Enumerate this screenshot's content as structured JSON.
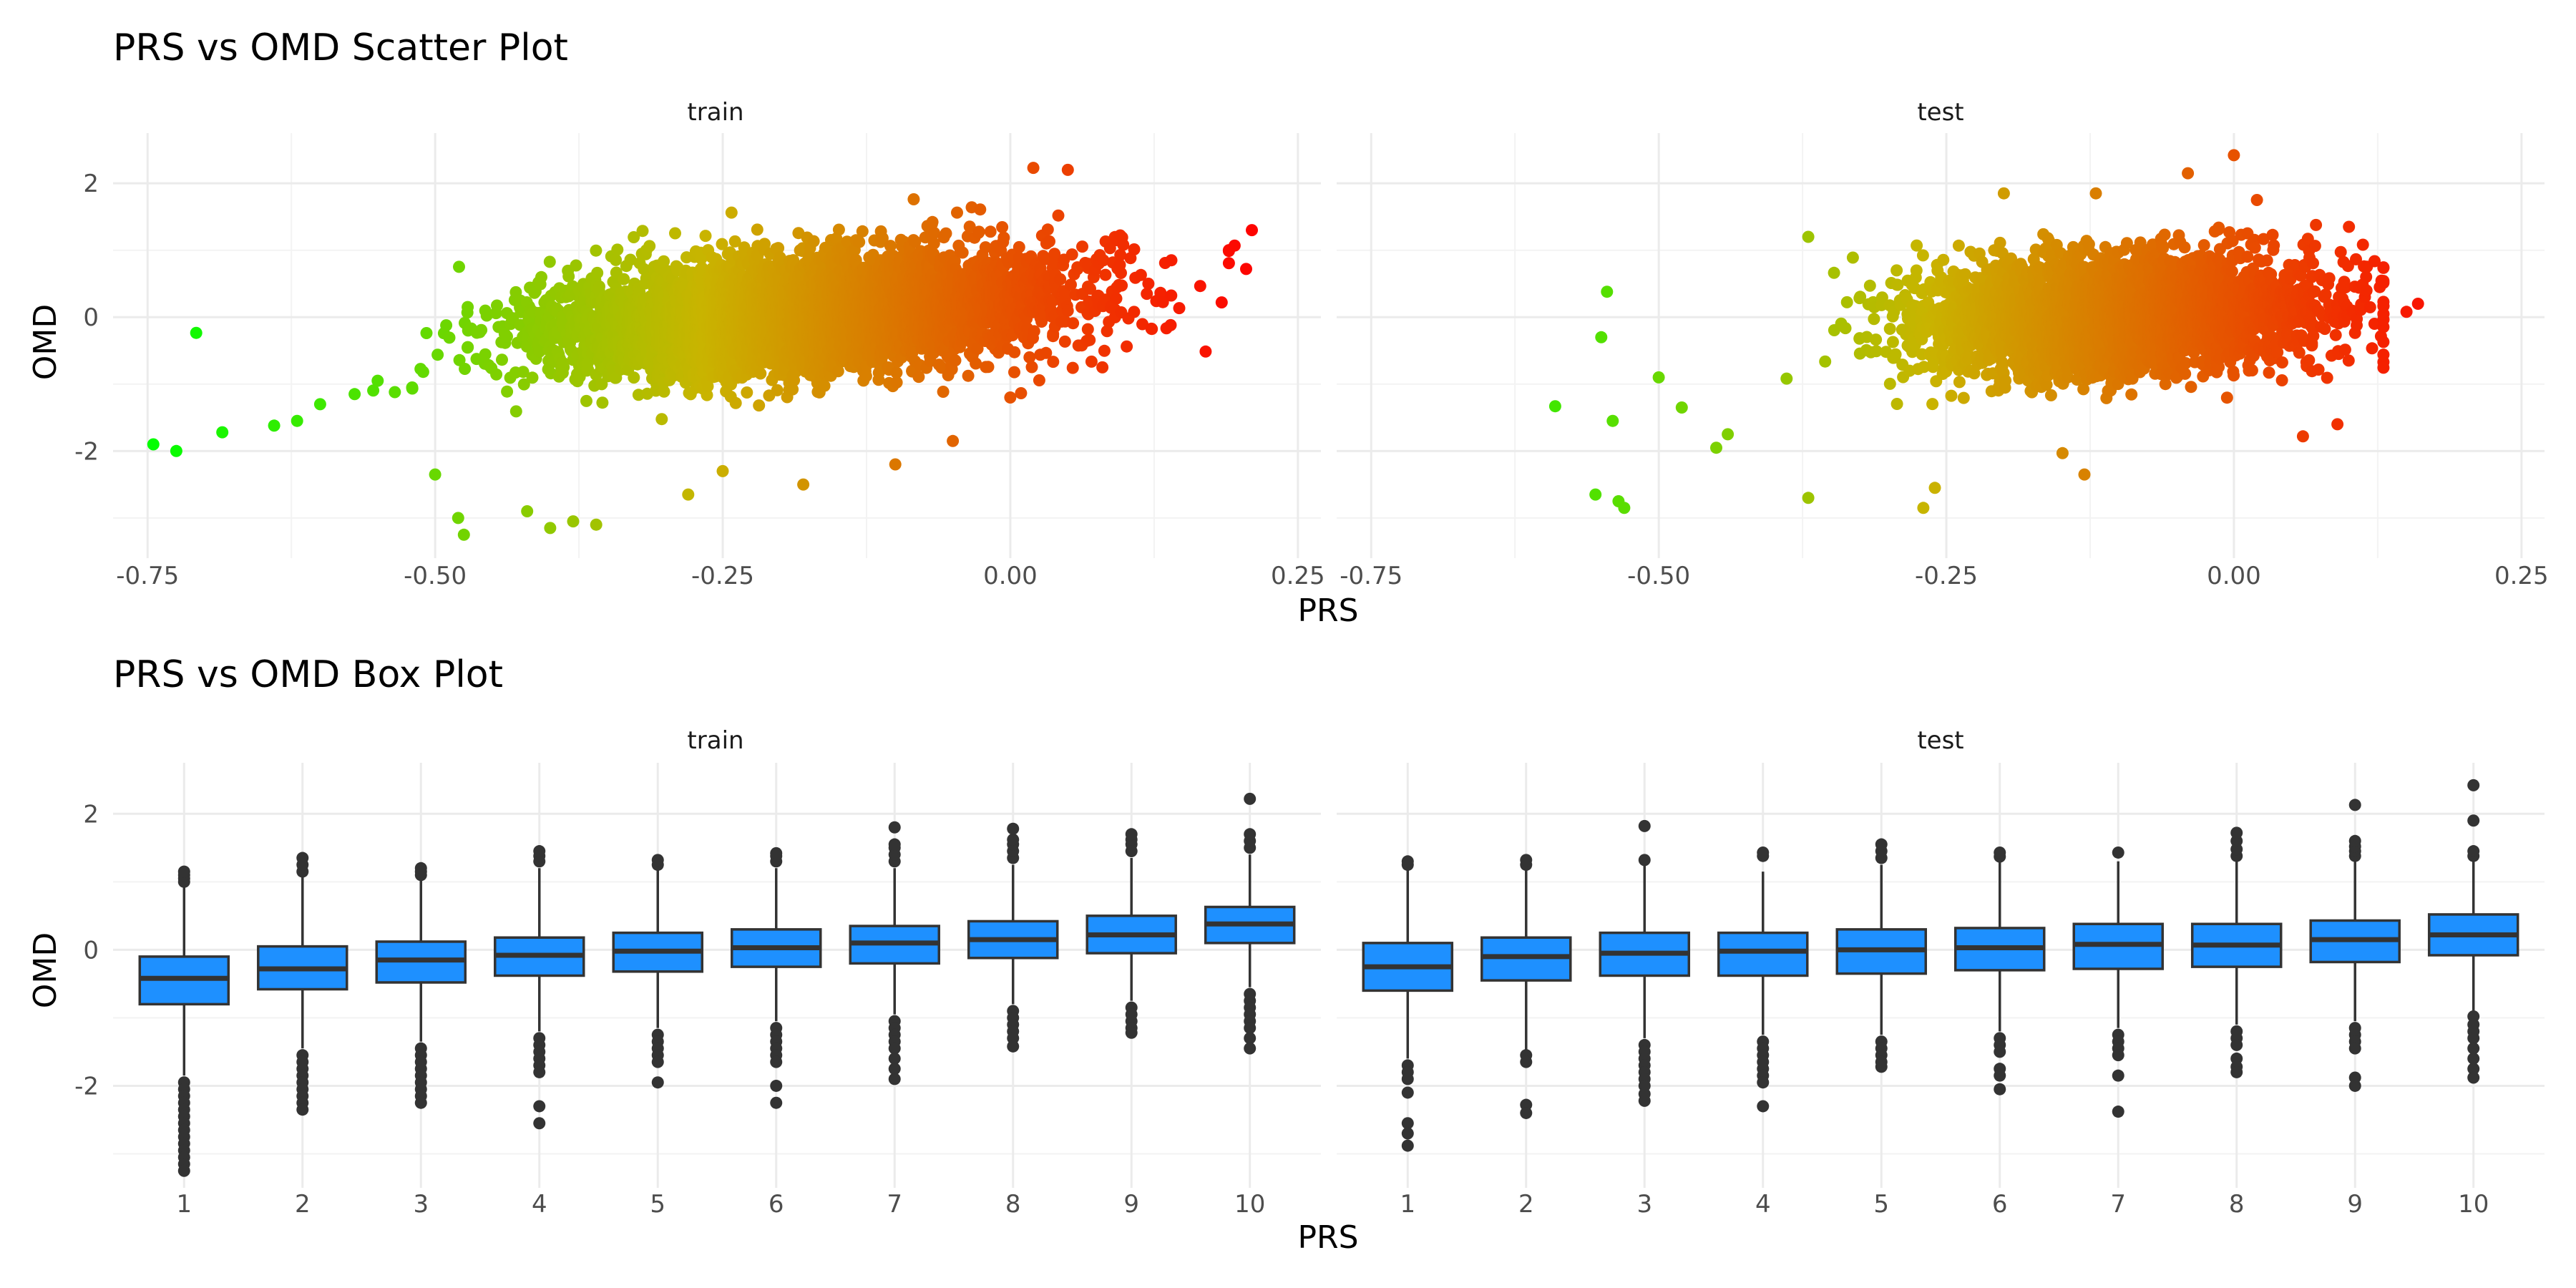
{
  "figure": {
    "xlabel": "PRS",
    "ylabel": "OMD"
  },
  "chart_data": [
    {
      "type": "scatter",
      "title": "PRS vs OMD Scatter Plot",
      "xlabel": "PRS",
      "ylabel": "OMD",
      "facets": [
        "train",
        "test"
      ],
      "xlim": [
        -0.78,
        0.27
      ],
      "ylim": [
        -3.6,
        2.75
      ],
      "x_ticks": [
        -0.75,
        -0.5,
        -0.25,
        0.0,
        0.25
      ],
      "x_tick_labels": [
        "-0.75",
        "-0.50",
        "-0.25",
        "0.00",
        "0.25"
      ],
      "y_ticks": [
        -2,
        0,
        2
      ],
      "y_tick_labels": [
        "-2",
        "0",
        "2"
      ],
      "color_scale": {
        "low": "#00ff00",
        "high": "#ff0000",
        "mapped_to": "PRS",
        "legend": "none"
      },
      "grid": true,
      "panels": {
        "train": {
          "x_range": [
            -0.75,
            0.22
          ],
          "center_x": -0.18,
          "trend_slope": 1.9,
          "trend_intercept": 0.25,
          "points": [
            {
              "x": -0.745,
              "y": -1.9
            },
            {
              "x": -0.725,
              "y": -2.0
            },
            {
              "x": -0.685,
              "y": -1.72
            },
            {
              "x": -0.64,
              "y": -1.62
            },
            {
              "x": -0.62,
              "y": -1.55
            },
            {
              "x": -0.6,
              "y": -1.3
            },
            {
              "x": -0.57,
              "y": -1.15
            },
            {
              "x": -0.55,
              "y": -0.95
            },
            {
              "x": -0.52,
              "y": -1.05
            },
            {
              "x": -0.5,
              "y": -2.35
            },
            {
              "x": -0.48,
              "y": -3.0
            },
            {
              "x": -0.475,
              "y": -3.25
            },
            {
              "x": -0.42,
              "y": -2.9
            },
            {
              "x": -0.4,
              "y": -3.15
            },
            {
              "x": -0.38,
              "y": -3.05
            },
            {
              "x": -0.36,
              "y": -3.1
            },
            {
              "x": -0.28,
              "y": -2.65
            },
            {
              "x": -0.25,
              "y": -2.3
            },
            {
              "x": -0.18,
              "y": -2.5
            },
            {
              "x": 0.02,
              "y": 2.23
            },
            {
              "x": 0.05,
              "y": 2.2
            },
            {
              "x": 0.195,
              "y": 1.07
            },
            {
              "x": 0.21,
              "y": 1.3
            },
            {
              "x": 0.205,
              "y": 0.72
            },
            {
              "x": 0.14,
              "y": 0.85
            },
            {
              "x": 0.12,
              "y": 0.5
            },
            {
              "x": 0.08,
              "y": -0.75
            },
            {
              "x": 0.0,
              "y": -1.2
            },
            {
              "x": -0.05,
              "y": -1.85
            },
            {
              "x": -0.1,
              "y": -2.2
            }
          ]
        },
        "test": {
          "x_range": [
            -0.59,
            0.16
          ],
          "center_x": -0.1,
          "trend_slope": 1.3,
          "trend_intercept": 0.1,
          "points": [
            {
              "x": -0.59,
              "y": -1.33
            },
            {
              "x": -0.555,
              "y": -2.65
            },
            {
              "x": -0.535,
              "y": -2.75
            },
            {
              "x": -0.53,
              "y": -2.85
            },
            {
              "x": -0.54,
              "y": -1.55
            },
            {
              "x": -0.55,
              "y": -0.3
            },
            {
              "x": -0.545,
              "y": 0.38
            },
            {
              "x": -0.5,
              "y": -0.9
            },
            {
              "x": -0.48,
              "y": -1.35
            },
            {
              "x": -0.45,
              "y": -1.95
            },
            {
              "x": -0.44,
              "y": -1.75
            },
            {
              "x": -0.37,
              "y": -2.7
            },
            {
              "x": -0.37,
              "y": 1.2
            },
            {
              "x": -0.26,
              "y": -2.55
            },
            {
              "x": -0.27,
              "y": -2.85
            },
            {
              "x": -0.13,
              "y": -2.35
            },
            {
              "x": -0.12,
              "y": 1.85
            },
            {
              "x": -0.04,
              "y": 2.15
            },
            {
              "x": 0.0,
              "y": 2.42
            },
            {
              "x": 0.02,
              "y": 1.75
            },
            {
              "x": 0.06,
              "y": -1.78
            },
            {
              "x": 0.09,
              "y": -1.6
            },
            {
              "x": 0.1,
              "y": 1.35
            },
            {
              "x": 0.15,
              "y": 0.08
            },
            {
              "x": 0.16,
              "y": 0.2
            },
            {
              "x": -0.2,
              "y": 1.85
            }
          ]
        }
      }
    },
    {
      "type": "box",
      "title": "PRS vs OMD Box Plot",
      "xlabel": "PRS",
      "ylabel": "OMD",
      "facets": [
        "train",
        "test"
      ],
      "categories": [
        "1",
        "2",
        "3",
        "4",
        "5",
        "6",
        "7",
        "8",
        "9",
        "10"
      ],
      "ylim": [
        -3.5,
        2.75
      ],
      "y_ticks": [
        -2,
        0,
        2
      ],
      "y_tick_labels": [
        "-2",
        "0",
        "2"
      ],
      "box_fill": "#1e90ff",
      "box_stroke": "#333333",
      "grid": true,
      "panels": {
        "train": [
          {
            "q1": -0.8,
            "median": -0.42,
            "q3": -0.1,
            "whisker_low": -1.85,
            "whisker_high": 1.15,
            "outliers_high": [
              1.0,
              1.05,
              1.1,
              1.15
            ],
            "outliers_low": [
              -1.95,
              -2.05,
              -2.15,
              -2.25,
              -2.35,
              -2.45,
              -2.55,
              -2.65,
              -2.75,
              -2.85,
              -2.95,
              -3.05,
              -3.15,
              -3.25
            ]
          },
          {
            "q1": -0.58,
            "median": -0.28,
            "q3": 0.05,
            "whisker_low": -1.45,
            "whisker_high": 1.1,
            "outliers_high": [
              1.15,
              1.25,
              1.35
            ],
            "outliers_low": [
              -1.55,
              -1.65,
              -1.75,
              -1.85,
              -1.95,
              -2.05,
              -2.15,
              -2.25,
              -2.35
            ]
          },
          {
            "q1": -0.48,
            "median": -0.15,
            "q3": 0.12,
            "whisker_low": -1.35,
            "whisker_high": 1.05,
            "outliers_high": [
              1.1,
              1.15,
              1.2
            ],
            "outliers_low": [
              -1.45,
              -1.55,
              -1.65,
              -1.75,
              -1.85,
              -1.95,
              -2.05,
              -2.15,
              -2.25
            ]
          },
          {
            "q1": -0.38,
            "median": -0.08,
            "q3": 0.18,
            "whisker_low": -1.2,
            "whisker_high": 1.2,
            "outliers_high": [
              1.3,
              1.38,
              1.45
            ],
            "outliers_low": [
              -1.3,
              -1.4,
              -1.5,
              -1.6,
              -1.7,
              -1.8,
              -2.3,
              -2.55
            ]
          },
          {
            "q1": -0.32,
            "median": -0.02,
            "q3": 0.25,
            "whisker_low": -1.15,
            "whisker_high": 1.2,
            "outliers_high": [
              1.25,
              1.32
            ],
            "outliers_low": [
              -1.25,
              -1.35,
              -1.45,
              -1.55,
              -1.65,
              -1.95
            ]
          },
          {
            "q1": -0.25,
            "median": 0.03,
            "q3": 0.3,
            "whisker_low": -1.05,
            "whisker_high": 1.2,
            "outliers_high": [
              1.3,
              1.38,
              1.42
            ],
            "outliers_low": [
              -1.15,
              -1.25,
              -1.35,
              -1.45,
              -1.55,
              -1.65,
              -2.0,
              -2.25
            ]
          },
          {
            "q1": -0.2,
            "median": 0.1,
            "q3": 0.35,
            "whisker_low": -0.95,
            "whisker_high": 1.2,
            "outliers_high": [
              1.3,
              1.4,
              1.5,
              1.55,
              1.8
            ],
            "outliers_low": [
              -1.05,
              -1.15,
              -1.25,
              -1.35,
              -1.45,
              -1.6,
              -1.75,
              -1.9
            ]
          },
          {
            "q1": -0.12,
            "median": 0.15,
            "q3": 0.42,
            "whisker_low": -0.8,
            "whisker_high": 1.25,
            "outliers_high": [
              1.35,
              1.45,
              1.55,
              1.62,
              1.78
            ],
            "outliers_low": [
              -0.9,
              -1.0,
              -1.1,
              -1.2,
              -1.3,
              -1.42
            ]
          },
          {
            "q1": -0.05,
            "median": 0.22,
            "q3": 0.5,
            "whisker_low": -0.75,
            "whisker_high": 1.35,
            "outliers_high": [
              1.45,
              1.55,
              1.62,
              1.7
            ],
            "outliers_low": [
              -0.85,
              -0.95,
              -1.05,
              -1.15,
              -1.22
            ]
          },
          {
            "q1": 0.1,
            "median": 0.38,
            "q3": 0.63,
            "whisker_low": -0.55,
            "whisker_high": 1.4,
            "outliers_high": [
              1.5,
              1.6,
              1.7,
              2.22
            ],
            "outliers_low": [
              -0.65,
              -0.75,
              -0.85,
              -0.95,
              -1.05,
              -1.15,
              -1.3,
              -1.45
            ]
          }
        ],
        "test": [
          {
            "q1": -0.6,
            "median": -0.25,
            "q3": 0.1,
            "whisker_low": -1.6,
            "whisker_high": 1.2,
            "outliers_high": [
              1.25,
              1.3
            ],
            "outliers_low": [
              -1.7,
              -1.8,
              -1.9,
              -2.1,
              -2.55,
              -2.7,
              -2.88
            ]
          },
          {
            "q1": -0.45,
            "median": -0.1,
            "q3": 0.18,
            "whisker_low": -1.5,
            "whisker_high": 1.2,
            "outliers_high": [
              1.25,
              1.32
            ],
            "outliers_low": [
              -1.55,
              -1.65,
              -2.28,
              -2.4
            ]
          },
          {
            "q1": -0.38,
            "median": -0.05,
            "q3": 0.25,
            "whisker_low": -1.3,
            "whisker_high": 1.25,
            "outliers_high": [
              1.32,
              1.82
            ],
            "outliers_low": [
              -1.4,
              -1.5,
              -1.6,
              -1.7,
              -1.8,
              -1.9,
              -2.0,
              -2.12,
              -2.22
            ]
          },
          {
            "q1": -0.38,
            "median": -0.02,
            "q3": 0.25,
            "whisker_low": -1.25,
            "whisker_high": 1.15,
            "outliers_high": [
              1.38,
              1.43
            ],
            "outliers_low": [
              -1.35,
              -1.45,
              -1.55,
              -1.65,
              -1.75,
              -1.85,
              -1.95,
              -2.3
            ]
          },
          {
            "q1": -0.35,
            "median": 0.0,
            "q3": 0.3,
            "whisker_low": -1.25,
            "whisker_high": 1.25,
            "outliers_high": [
              1.35,
              1.45,
              1.55
            ],
            "outliers_low": [
              -1.35,
              -1.45,
              -1.55,
              -1.65,
              -1.72
            ]
          },
          {
            "q1": -0.3,
            "median": 0.03,
            "q3": 0.32,
            "whisker_low": -1.2,
            "whisker_high": 1.3,
            "outliers_high": [
              1.37,
              1.43
            ],
            "outliers_low": [
              -1.3,
              -1.4,
              -1.5,
              -1.75,
              -1.85,
              -2.05
            ]
          },
          {
            "q1": -0.28,
            "median": 0.08,
            "q3": 0.38,
            "whisker_low": -1.15,
            "whisker_high": 1.3,
            "outliers_high": [
              1.43
            ],
            "outliers_low": [
              -1.25,
              -1.35,
              -1.45,
              -1.55,
              -1.85,
              -2.38
            ]
          },
          {
            "q1": -0.25,
            "median": 0.07,
            "q3": 0.38,
            "whisker_low": -1.1,
            "whisker_high": 1.3,
            "outliers_high": [
              1.38,
              1.48,
              1.6,
              1.72
            ],
            "outliers_low": [
              -1.2,
              -1.3,
              -1.4,
              -1.6,
              -1.72,
              -1.8
            ]
          },
          {
            "q1": -0.18,
            "median": 0.15,
            "q3": 0.43,
            "whisker_low": -1.05,
            "whisker_high": 1.3,
            "outliers_high": [
              1.38,
              1.45,
              1.52,
              1.6,
              2.13
            ],
            "outliers_low": [
              -1.15,
              -1.25,
              -1.35,
              -1.45,
              -1.88,
              -2.0
            ]
          },
          {
            "q1": -0.08,
            "median": 0.22,
            "q3": 0.52,
            "whisker_low": -0.9,
            "whisker_high": 1.3,
            "outliers_high": [
              1.38,
              1.45,
              1.9,
              2.42
            ],
            "outliers_low": [
              -0.98,
              -1.1,
              -1.2,
              -1.3,
              -1.45,
              -1.6,
              -1.75,
              -1.88
            ]
          }
        ]
      }
    }
  ]
}
